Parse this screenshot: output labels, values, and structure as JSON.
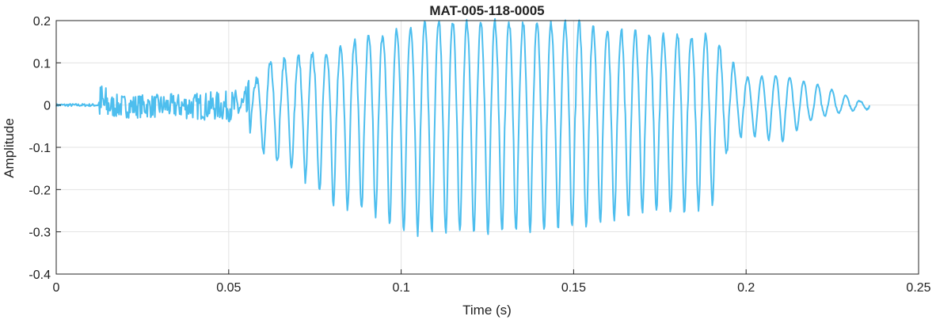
{
  "chart_data": {
    "type": "line",
    "title": "MAT-005-118-0005",
    "xlabel": "Time (s)",
    "ylabel": "Amplitude",
    "xlim": [
      0,
      0.25
    ],
    "ylim": [
      -0.4,
      0.2
    ],
    "xticks": [
      "0",
      "0.05",
      "0.1",
      "0.15",
      "0.2",
      "0.25"
    ],
    "yticks": [
      "0.2",
      "0.1",
      "0",
      "-0.1",
      "-0.2",
      "-0.3",
      "-0.4"
    ],
    "grid": true,
    "series": [
      {
        "color": "#4DBEEE",
        "sample_period_s": 0.0002,
        "envelope": {
          "t": [
            0,
            0.012,
            0.013,
            0.016,
            0.03,
            0.05,
            0.055,
            0.058,
            0.062,
            0.07,
            0.08,
            0.09,
            0.1,
            0.11,
            0.12,
            0.13,
            0.14,
            0.15,
            0.16,
            0.17,
            0.18,
            0.19,
            0.195,
            0.2,
            0.21,
            0.22,
            0.23,
            0.236
          ],
          "upper": [
            0.002,
            0.002,
            0.04,
            0.015,
            0.015,
            0.02,
            0.025,
            0.06,
            0.1,
            0.115,
            0.13,
            0.16,
            0.18,
            0.2,
            0.195,
            0.195,
            0.19,
            0.195,
            0.18,
            0.17,
            0.165,
            0.16,
            0.11,
            0.065,
            0.07,
            0.05,
            0.02,
            0.0
          ],
          "lower": [
            -0.002,
            -0.002,
            -0.04,
            -0.02,
            -0.02,
            -0.025,
            -0.04,
            -0.1,
            -0.13,
            -0.16,
            -0.24,
            -0.25,
            -0.3,
            -0.305,
            -0.305,
            -0.3,
            -0.295,
            -0.29,
            -0.28,
            -0.255,
            -0.255,
            -0.24,
            -0.1,
            -0.07,
            -0.09,
            -0.03,
            -0.015,
            -0.01
          ]
        },
        "cycle_period_s": 0.00407
      }
    ]
  }
}
